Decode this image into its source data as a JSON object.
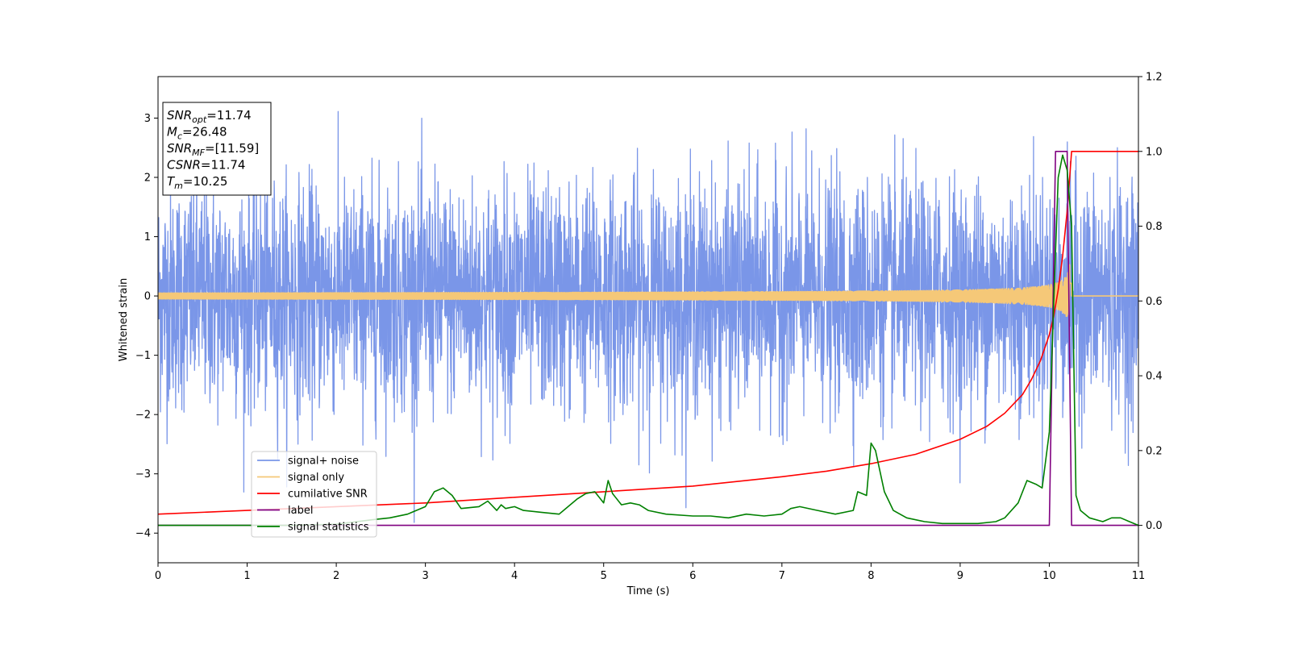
{
  "chart_data": {
    "type": "line",
    "xlabel": "Time (s)",
    "ylabel": "Whitened strain",
    "xlim": [
      0,
      11
    ],
    "ylim": [
      -4.5,
      3.7
    ],
    "y2lim": [
      -0.1,
      1.2
    ],
    "x_ticks": [
      0,
      1,
      2,
      3,
      4,
      5,
      6,
      7,
      8,
      9,
      10,
      11
    ],
    "y_ticks": [
      -4,
      -3,
      -2,
      -1,
      0,
      1,
      2,
      3
    ],
    "y2_ticks": [
      0.0,
      0.2,
      0.4,
      0.6,
      0.8,
      1.0,
      1.2
    ],
    "grid": false,
    "legend_position": "lower-left",
    "annotation": [
      {
        "base": "SNR",
        "sub": "opt",
        "value": "=11.74"
      },
      {
        "base": "M",
        "sub": "c",
        "value": "=26.48"
      },
      {
        "base": "SNR",
        "sub": "MF",
        "value": "=[11.59]"
      },
      {
        "base": "CSNR",
        "sub": "",
        "value": "=11.74"
      },
      {
        "base": "T",
        "sub": "m",
        "value": "=10.25"
      }
    ],
    "series": [
      {
        "name": "signal+ noise",
        "color": "#7a96e8",
        "axis": "left",
        "kind": "noise",
        "std": 0.95,
        "range": [
          -4.1,
          3.35
        ],
        "samples": 4000
      },
      {
        "name": "signal only",
        "color": "#f5c878",
        "axis": "left",
        "kind": "chirp",
        "x_end": 10.25,
        "amp_start": 0.02,
        "amp_end": 0.55
      },
      {
        "name": "cumilative SNR",
        "color": "#ff0000",
        "axis": "right",
        "x": [
          0,
          1,
          2,
          3,
          4,
          5,
          6,
          7,
          7.5,
          8,
          8.5,
          9,
          9.3,
          9.5,
          9.7,
          9.8,
          9.9,
          10.0,
          10.05,
          10.1,
          10.15,
          10.2,
          10.25,
          10.3,
          11
        ],
        "values": [
          0.03,
          0.04,
          0.05,
          0.06,
          0.075,
          0.09,
          0.105,
          0.13,
          0.145,
          0.165,
          0.19,
          0.23,
          0.265,
          0.3,
          0.35,
          0.39,
          0.44,
          0.51,
          0.56,
          0.63,
          0.72,
          0.84,
          1.0,
          1.0,
          1.0
        ]
      },
      {
        "name": "label",
        "color": "#800080",
        "axis": "right",
        "x": [
          0,
          10.0,
          10.07,
          10.2,
          10.25,
          11
        ],
        "values": [
          0,
          0,
          1.0,
          1.0,
          0,
          0
        ]
      },
      {
        "name": "signal statistics",
        "color": "#008000",
        "axis": "right",
        "x": [
          0,
          0.5,
          1,
          1.5,
          2,
          2.4,
          2.6,
          2.8,
          3,
          3.1,
          3.2,
          3.3,
          3.4,
          3.6,
          3.7,
          3.8,
          3.85,
          3.9,
          4,
          4.1,
          4.3,
          4.5,
          4.7,
          4.8,
          4.9,
          5.0,
          5.05,
          5.1,
          5.2,
          5.3,
          5.4,
          5.5,
          5.7,
          6,
          6.2,
          6.4,
          6.6,
          6.8,
          7,
          7.1,
          7.2,
          7.4,
          7.6,
          7.8,
          7.85,
          7.95,
          8.0,
          8.05,
          8.15,
          8.25,
          8.4,
          8.6,
          8.8,
          9,
          9.2,
          9.4,
          9.5,
          9.65,
          9.75,
          9.85,
          9.92,
          10.0,
          10.05,
          10.1,
          10.15,
          10.2,
          10.25,
          10.3,
          10.35,
          10.45,
          10.6,
          10.7,
          10.8,
          10.9,
          11
        ],
        "values": [
          0.0,
          0.0,
          0.0,
          0.0,
          0.003,
          0.015,
          0.02,
          0.03,
          0.05,
          0.09,
          0.1,
          0.08,
          0.045,
          0.05,
          0.065,
          0.04,
          0.055,
          0.045,
          0.05,
          0.04,
          0.035,
          0.03,
          0.07,
          0.085,
          0.09,
          0.06,
          0.12,
          0.085,
          0.055,
          0.06,
          0.055,
          0.04,
          0.03,
          0.025,
          0.025,
          0.02,
          0.03,
          0.025,
          0.03,
          0.045,
          0.05,
          0.04,
          0.03,
          0.04,
          0.09,
          0.08,
          0.22,
          0.2,
          0.09,
          0.04,
          0.02,
          0.01,
          0.005,
          0.005,
          0.005,
          0.01,
          0.02,
          0.06,
          0.12,
          0.11,
          0.1,
          0.25,
          0.6,
          0.93,
          0.99,
          0.95,
          0.8,
          0.08,
          0.04,
          0.02,
          0.01,
          0.02,
          0.02,
          0.01,
          0.0
        ]
      }
    ]
  }
}
